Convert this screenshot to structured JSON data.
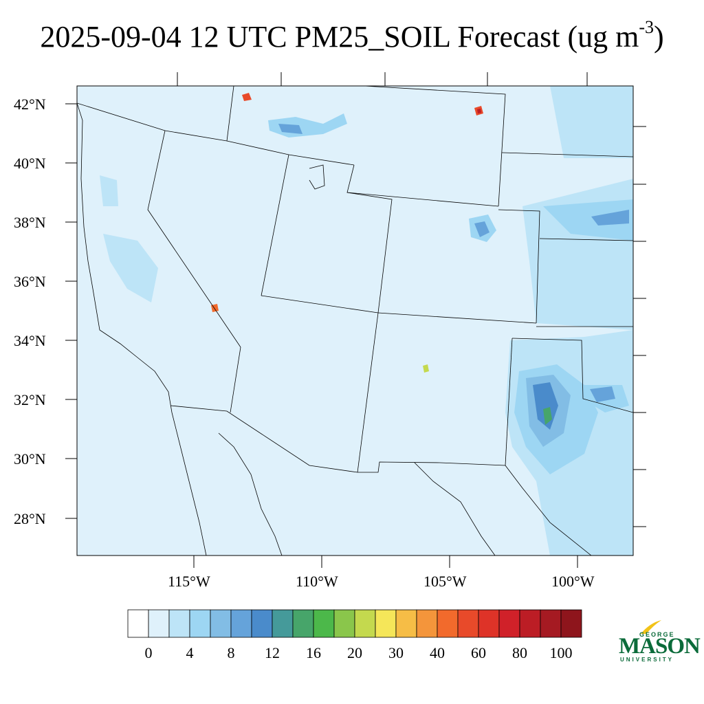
{
  "title": {
    "main": "2025-09-04 12 UTC PM25_SOIL Forecast (ug m",
    "superscript": "-3",
    "close": ")"
  },
  "map": {
    "background_color": "#dff1fb",
    "lat_labels": [
      "42°N",
      "40°N",
      "38°N",
      "36°N",
      "34°N",
      "32°N",
      "30°N",
      "28°N"
    ],
    "lon_labels": [
      "115°W",
      "110°W",
      "105°W",
      "100°W"
    ]
  },
  "colorbar": {
    "colors": [
      "#ffffff",
      "#dff1fb",
      "#bde4f7",
      "#9dd6f3",
      "#82bde5",
      "#65a3da",
      "#4a8bcb",
      "#459a9a",
      "#47a56a",
      "#4cb84a",
      "#8ac64b",
      "#c4d94e",
      "#f5e659",
      "#f6bd46",
      "#f4953b",
      "#f26a2c",
      "#e84a2a",
      "#de3328",
      "#d02129",
      "#bc1d25",
      "#a51a22",
      "#8e151c"
    ],
    "labels": [
      "0",
      "4",
      "8",
      "12",
      "16",
      "20",
      "30",
      "40",
      "60",
      "80",
      "100"
    ]
  },
  "logo": {
    "line1": "GEORGE",
    "line2": "MASON",
    "line3": "UNIVERSITY"
  }
}
